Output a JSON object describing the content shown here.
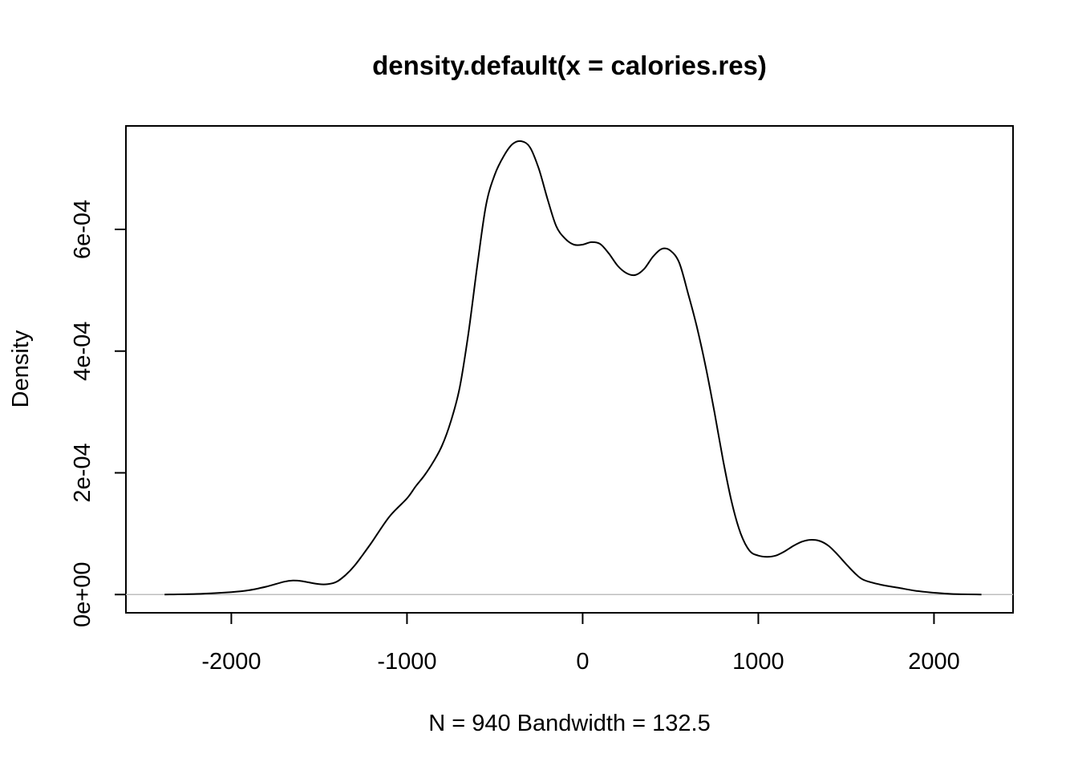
{
  "chart_data": {
    "type": "line",
    "title": "density.default(x = calories.res)",
    "xlabel": "N = 940   Bandwidth = 132.5",
    "ylabel": "Density",
    "xlim": [
      -2600,
      2450
    ],
    "ylim": [
      -3e-05,
      0.00077
    ],
    "x_ticks": [
      -2000,
      -1000,
      0,
      1000,
      2000
    ],
    "x_tick_labels": [
      "-2000",
      "-1000",
      "0",
      "1000",
      "2000"
    ],
    "y_ticks": [
      0,
      0.0002,
      0.0004,
      0.0006
    ],
    "y_tick_labels": [
      "0e+00",
      "2e-04",
      "4e-04",
      "6e-04"
    ],
    "grid": false,
    "baseline_color": "#bebebe",
    "line_color": "#000000",
    "series": [
      {
        "x": [
          -2380,
          -2200,
          -2000,
          -1900,
          -1800,
          -1700,
          -1650,
          -1600,
          -1500,
          -1450,
          -1400,
          -1350,
          -1300,
          -1250,
          -1200,
          -1100,
          -1000,
          -950,
          -900,
          -850,
          -800,
          -750,
          -700,
          -650,
          -600,
          -550,
          -500,
          -450,
          -400,
          -350,
          -300,
          -250,
          -200,
          -150,
          -100,
          -50,
          0,
          50,
          100,
          150,
          200,
          250,
          300,
          350,
          400,
          450,
          500,
          550,
          600,
          650,
          700,
          750,
          800,
          850,
          900,
          950,
          1000,
          1050,
          1100,
          1150,
          1200,
          1250,
          1300,
          1350,
          1400,
          1450,
          1500,
          1550,
          1600,
          1700,
          1800,
          1900,
          2000,
          2100,
          2270
        ],
        "y": [
          0,
          1e-06,
          4e-06,
          7e-06,
          1.3e-05,
          2.1e-05,
          2.3e-05,
          2.2e-05,
          1.7e-05,
          1.7e-05,
          2.1e-05,
          3.2e-05,
          4.7e-05,
          6.6e-05,
          8.6e-05,
          0.000128,
          0.000158,
          0.000178,
          0.000196,
          0.000218,
          0.000245,
          0.000285,
          0.00034,
          0.00043,
          0.00054,
          0.00064,
          0.00069,
          0.00072,
          0.00074,
          0.000745,
          0.000735,
          0.0007,
          0.00065,
          0.000605,
          0.000585,
          0.000575,
          0.000575,
          0.000579,
          0.000576,
          0.00056,
          0.00054,
          0.000528,
          0.000525,
          0.000535,
          0.000555,
          0.000568,
          0.000565,
          0.000545,
          0.000495,
          0.00044,
          0.000375,
          0.0003,
          0.00022,
          0.00015,
          0.0001,
          7.2e-05,
          6.4e-05,
          6.2e-05,
          6.4e-05,
          7.1e-05,
          8e-05,
          8.7e-05,
          9e-05,
          8.8e-05,
          8e-05,
          6.6e-05,
          5e-05,
          3.5e-05,
          2.4e-05,
          1.6e-05,
          1.1e-05,
          6e-06,
          3e-06,
          1e-06,
          0
        ]
      }
    ]
  }
}
